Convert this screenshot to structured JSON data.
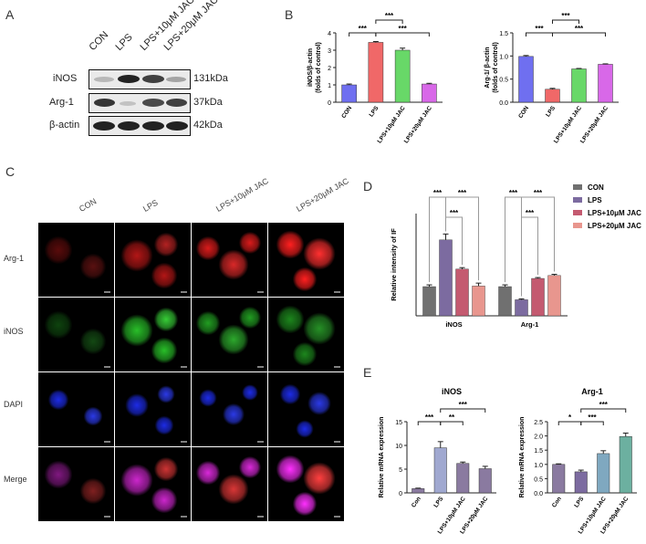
{
  "panels": {
    "a": "A",
    "b": "B",
    "c": "C",
    "d": "D",
    "e": "E"
  },
  "western_blot": {
    "lanes": [
      "CON",
      "LPS",
      "LPS+10μM JAC",
      "LPS+20μM JAC"
    ],
    "rows": [
      {
        "label": "iNOS",
        "kda": "131kDa"
      },
      {
        "label": "Arg-1",
        "kda": "37kDa"
      },
      {
        "label": "β-actin",
        "kda": "42kDa"
      }
    ]
  },
  "chart_data": [
    {
      "id": "b1",
      "type": "bar",
      "categories": [
        "CON",
        "LPS",
        "LPS+10μM JAC",
        "LPS+20μM JAC"
      ],
      "values": [
        1.0,
        3.45,
        3.0,
        1.05
      ],
      "errors": [
        0.05,
        0.05,
        0.12,
        0.04
      ],
      "ylabel": "iNOS/β-actin\n(folds of control)",
      "ylim": [
        0,
        4
      ],
      "yticks": [
        "0",
        "1",
        "2",
        "3",
        "4"
      ],
      "colors": [
        "#6f6ff0",
        "#f06868",
        "#68d868",
        "#d868e8"
      ],
      "significance": [
        {
          "from": 1,
          "to": 2,
          "label": "***",
          "level": 2
        },
        {
          "from": 0,
          "to": 1,
          "label": "***",
          "level": 1
        },
        {
          "from": 1,
          "to": 3,
          "label": "***",
          "level": 1
        }
      ]
    },
    {
      "id": "b2",
      "type": "bar",
      "categories": [
        "CON",
        "LPS",
        "LPS+10μM JAC",
        "LPS+20μM JAC"
      ],
      "values": [
        0.99,
        0.28,
        0.72,
        0.82
      ],
      "errors": [
        0.02,
        0.02,
        0.01,
        0.01
      ],
      "ylabel": "Arg-1/ β-actin\n(folds of control)",
      "ylim": [
        0,
        1.5
      ],
      "yticks": [
        "0.0",
        "0.5",
        "1.0",
        "1.5"
      ],
      "colors": [
        "#6f6ff0",
        "#f06868",
        "#68d868",
        "#d868e8"
      ],
      "significance": [
        {
          "from": 1,
          "to": 2,
          "label": "***",
          "level": 2
        },
        {
          "from": 0,
          "to": 1,
          "label": "***",
          "level": 1
        },
        {
          "from": 1,
          "to": 3,
          "label": "***",
          "level": 1
        }
      ]
    },
    {
      "id": "d",
      "type": "bar",
      "groups": [
        "iNOS",
        "Arg-1"
      ],
      "series": [
        {
          "name": "CON",
          "values": [
            1.0,
            1.0
          ],
          "errors": [
            0.06,
            0.06
          ],
          "color": "#707070"
        },
        {
          "name": "LPS",
          "values": [
            2.6,
            0.55
          ],
          "errors": [
            0.2,
            0.03
          ],
          "color": "#7c6ba0"
        },
        {
          "name": "LPS+10μM JAC",
          "values": [
            1.6,
            1.28
          ],
          "errors": [
            0.05,
            0.03
          ],
          "color": "#c45a70"
        },
        {
          "name": "LPS+20μM JAC",
          "values": [
            1.02,
            1.38
          ],
          "errors": [
            0.1,
            0.04
          ],
          "color": "#e8968e"
        }
      ],
      "ylabel": "Relative intensity of IF",
      "ylim": [
        0,
        3.5
      ],
      "significance": [
        {
          "group": 0,
          "from": 0,
          "to": 1,
          "label": "***",
          "level": 2
        },
        {
          "group": 0,
          "from": 1,
          "to": 3,
          "label": "***",
          "level": 2
        },
        {
          "group": 0,
          "from": 1,
          "to": 2,
          "label": "***",
          "level": 1
        },
        {
          "group": 1,
          "from": 0,
          "to": 1,
          "label": "***",
          "level": 2
        },
        {
          "group": 1,
          "from": 1,
          "to": 3,
          "label": "***",
          "level": 2
        },
        {
          "group": 1,
          "from": 1,
          "to": 2,
          "label": "***",
          "level": 1
        }
      ]
    },
    {
      "id": "e1",
      "type": "bar",
      "title": "iNOS",
      "categories": [
        "Con",
        "LPS",
        "LPS+10μM JAC",
        "LPS+20μM JAC"
      ],
      "values": [
        0.9,
        9.5,
        6.2,
        5.1
      ],
      "errors": [
        0.1,
        1.3,
        0.3,
        0.5
      ],
      "ylabel": "Relative mRNA expression",
      "ylim": [
        0,
        15
      ],
      "yticks": [
        "0",
        "5",
        "10",
        "15"
      ],
      "colors": [
        "#8a7aa0",
        "#a0a8d0",
        "#8a7aa0",
        "#8a7aa0"
      ],
      "significance": [
        {
          "from": 0,
          "to": 1,
          "label": "***",
          "level": 1
        },
        {
          "from": 1,
          "to": 2,
          "label": "**",
          "level": 1
        },
        {
          "from": 1,
          "to": 3,
          "label": "***",
          "level": 2
        }
      ]
    },
    {
      "id": "e2",
      "type": "bar",
      "title": "Arg-1",
      "categories": [
        "Con",
        "LPS",
        "LPS+10μM JAC",
        "LPS+20μM JAC"
      ],
      "values": [
        1.0,
        0.74,
        1.38,
        1.98
      ],
      "errors": [
        0.02,
        0.06,
        0.1,
        0.12
      ],
      "ylabel": "Relative mRNA expression",
      "ylim": [
        0,
        2.5
      ],
      "yticks": [
        "0.0",
        "0.5",
        "1.0",
        "1.5",
        "2.0",
        "2.5"
      ],
      "colors": [
        "#8a7aa0",
        "#7c6ba0",
        "#7fa8c0",
        "#6cb0a0"
      ],
      "significance": [
        {
          "from": 0,
          "to": 1,
          "label": "*",
          "level": 1
        },
        {
          "from": 1,
          "to": 2,
          "label": "***",
          "level": 1
        },
        {
          "from": 1,
          "to": 3,
          "label": "***",
          "level": 2
        }
      ]
    }
  ],
  "microscopy": {
    "columns": [
      "CON",
      "LPS",
      "LPS+10μM JAC",
      "LPS+20μM JAC"
    ],
    "rows": [
      "Arg-1",
      "iNOS",
      "DAPI",
      "Merge"
    ]
  }
}
